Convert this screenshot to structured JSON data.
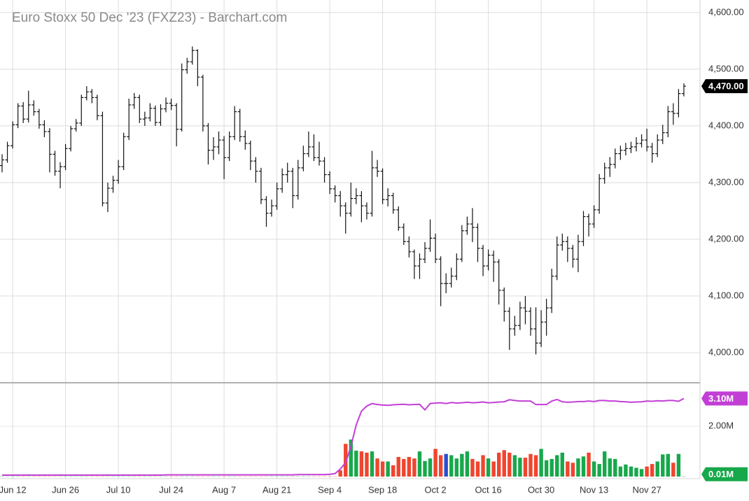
{
  "chart_data": {
    "type": "ohlc",
    "title": "Euro Stoxx 50 Dec '23 (FXZ23) - Barchart.com",
    "categories": [
      null,
      null,
      "Jun 12",
      null,
      null,
      null,
      null,
      null,
      null,
      null,
      null,
      null,
      "Jun 26",
      null,
      null,
      null,
      null,
      null,
      null,
      null,
      null,
      null,
      "Jul 10",
      null,
      null,
      null,
      null,
      null,
      null,
      null,
      null,
      null,
      "Jul 24",
      null,
      null,
      null,
      null,
      null,
      null,
      null,
      null,
      null,
      "Aug 7",
      null,
      null,
      null,
      null,
      null,
      null,
      null,
      null,
      null,
      "Aug 21",
      null,
      null,
      null,
      null,
      null,
      null,
      null,
      null,
      null,
      "Sep 4",
      null,
      null,
      null,
      null,
      null,
      null,
      null,
      null,
      null,
      "Sep 18",
      null,
      null,
      null,
      null,
      null,
      null,
      null,
      null,
      null,
      "Oct 2",
      null,
      null,
      null,
      null,
      null,
      null,
      null,
      null,
      null,
      "Oct 16",
      null,
      null,
      null,
      null,
      null,
      null,
      null,
      null,
      null,
      "Oct 30",
      null,
      null,
      null,
      null,
      null,
      null,
      null,
      null,
      null,
      "Nov 13",
      null,
      null,
      null,
      null,
      null,
      null,
      null,
      null,
      null,
      "Nov 27",
      null,
      null,
      null,
      null,
      null,
      null,
      null
    ],
    "open": [
      4330,
      4340,
      4365,
      4402,
      4435,
      4412,
      4437,
      4425,
      4402,
      4390,
      4350,
      4320,
      4328,
      4360,
      4395,
      4405,
      4450,
      4460,
      4450,
      4418,
      4264,
      4290,
      4304,
      4328,
      4381,
      4437,
      4450,
      4412,
      4414,
      4431,
      4406,
      4430,
      4440,
      4436,
      4394,
      4499,
      4513,
      4533,
      4486,
      4400,
      4357,
      4363,
      4375,
      4344,
      4381,
      4425,
      4381,
      4369,
      4338,
      4320,
      4270,
      4246,
      4259,
      4289,
      4314,
      4320,
      4277,
      4326,
      4351,
      4363,
      4344,
      4338,
      4314,
      4289,
      4277,
      4259,
      4246,
      4272,
      4277,
      4259,
      4246,
      4326,
      4320,
      4270,
      4277,
      4252,
      4221,
      4196,
      4178,
      4153,
      4165,
      4184,
      4202,
      4165,
      4122,
      4122,
      4135,
      4165,
      4215,
      4227,
      4221,
      4184,
      4153,
      4172,
      4160,
      4110,
      4073,
      4042,
      4048,
      4079,
      4073,
      4042,
      4017,
      4054,
      4079,
      4135,
      4190,
      4196,
      4184,
      4165,
      4196,
      4240,
      4227,
      4252,
      4307,
      4326,
      4332,
      4351,
      4357,
      4360,
      4363,
      4369,
      4375,
      4363,
      4351,
      4375,
      4388,
      4425,
      4422,
      4457
    ],
    "high": [
      4350,
      4372,
      4408,
      4440,
      4442,
      4462,
      4445,
      4430,
      4410,
      4396,
      4356,
      4336,
      4368,
      4400,
      4412,
      4455,
      4470,
      4465,
      4455,
      4425,
      4300,
      4312,
      4340,
      4388,
      4448,
      4458,
      4455,
      4425,
      4440,
      4436,
      4438,
      4450,
      4448,
      4440,
      4510,
      4520,
      4540,
      4535,
      4490,
      4405,
      4380,
      4390,
      4382,
      4390,
      4435,
      4430,
      4392,
      4374,
      4345,
      4326,
      4276,
      4270,
      4300,
      4325,
      4335,
      4326,
      4340,
      4365,
      4390,
      4385,
      4372,
      4345,
      4320,
      4295,
      4285,
      4265,
      4300,
      4290,
      4285,
      4265,
      4356,
      4340,
      4325,
      4290,
      4282,
      4258,
      4228,
      4205,
      4182,
      4175,
      4195,
      4235,
      4210,
      4170,
      4140,
      4150,
      4175,
      4225,
      4240,
      4255,
      4228,
      4190,
      4182,
      4180,
      4165,
      4115,
      4080,
      4065,
      4090,
      4100,
      4080,
      4080,
      4075,
      4095,
      4148,
      4205,
      4210,
      4205,
      4190,
      4208,
      4250,
      4245,
      4260,
      4315,
      4335,
      4345,
      4360,
      4365,
      4370,
      4372,
      4380,
      4385,
      4395,
      4370,
      4385,
      4402,
      4435,
      4440,
      4465,
      4475
    ],
    "low": [
      4318,
      4335,
      4360,
      4396,
      4405,
      4406,
      4418,
      4395,
      4380,
      4318,
      4312,
      4290,
      4322,
      4355,
      4390,
      4400,
      4445,
      4440,
      4410,
      4258,
      4248,
      4282,
      4298,
      4322,
      4375,
      4430,
      4405,
      4400,
      4408,
      4400,
      4400,
      4424,
      4428,
      4364,
      4390,
      4492,
      4508,
      4470,
      4390,
      4332,
      4340,
      4350,
      4306,
      4338,
      4375,
      4372,
      4358,
      4322,
      4300,
      4262,
      4222,
      4240,
      4252,
      4282,
      4300,
      4255,
      4270,
      4320,
      4345,
      4338,
      4330,
      4300,
      4280,
      4265,
      4240,
      4210,
      4240,
      4262,
      4230,
      4235,
      4240,
      4310,
      4262,
      4258,
      4245,
      4215,
      4190,
      4168,
      4130,
      4130,
      4158,
      4178,
      4158,
      4082,
      4105,
      4115,
      4128,
      4160,
      4208,
      4195,
      4160,
      4135,
      4145,
      4125,
      4085,
      4055,
      4005,
      4030,
      4040,
      4050,
      4030,
      3997,
      4010,
      4030,
      4070,
      4128,
      4180,
      4160,
      4150,
      4142,
      4188,
      4205,
      4220,
      4245,
      4298,
      4310,
      4325,
      4340,
      4348,
      4352,
      4355,
      4362,
      4355,
      4335,
      4345,
      4368,
      4380,
      4402,
      4415,
      4452
    ],
    "close": [
      4340,
      4365,
      4402,
      4435,
      4412,
      4437,
      4425,
      4402,
      4390,
      4350,
      4320,
      4328,
      4360,
      4395,
      4405,
      4450,
      4460,
      4450,
      4418,
      4264,
      4290,
      4304,
      4328,
      4381,
      4437,
      4450,
      4412,
      4414,
      4431,
      4406,
      4430,
      4440,
      4436,
      4394,
      4499,
      4513,
      4533,
      4486,
      4400,
      4357,
      4363,
      4375,
      4344,
      4381,
      4425,
      4381,
      4369,
      4338,
      4320,
      4270,
      4246,
      4259,
      4289,
      4314,
      4320,
      4277,
      4326,
      4351,
      4363,
      4344,
      4338,
      4314,
      4289,
      4277,
      4259,
      4246,
      4272,
      4277,
      4259,
      4246,
      4326,
      4320,
      4270,
      4277,
      4252,
      4221,
      4196,
      4178,
      4153,
      4165,
      4184,
      4202,
      4165,
      4122,
      4122,
      4135,
      4165,
      4215,
      4227,
      4221,
      4184,
      4153,
      4172,
      4160,
      4110,
      4073,
      4042,
      4048,
      4079,
      4073,
      4042,
      4017,
      4054,
      4079,
      4135,
      4190,
      4196,
      4184,
      4165,
      4196,
      4240,
      4227,
      4252,
      4307,
      4326,
      4332,
      4351,
      4357,
      4360,
      4363,
      4369,
      4375,
      4363,
      4351,
      4375,
      4388,
      4425,
      4422,
      4457,
      4470
    ],
    "color": "#111111",
    "last_price": {
      "value": 4470,
      "label": "4,470.00"
    },
    "last_price_color": "#000000",
    "ylim": [
      3947,
      4622
    ],
    "yticks": [
      {
        "value": 4000,
        "label": "4,000.00"
      },
      {
        "value": 4100,
        "label": "4,100.00"
      },
      {
        "value": 4200,
        "label": "4,200.00"
      },
      {
        "value": 4300,
        "label": "4,300.00"
      },
      {
        "value": 4400,
        "label": "4,400.00"
      },
      {
        "value": 4500,
        "label": "4,500.00"
      },
      {
        "value": 4600,
        "label": "4,600.00"
      }
    ],
    "grid": true,
    "volume": {
      "ylim": [
        -0.08,
        3.67
      ],
      "yticks": [
        {
          "value": 2,
          "label": "2.00M"
        }
      ],
      "series": [
        {
          "type": "bar",
          "up_color": "#17a84b",
          "down_color": "#f0452f",
          "flat_color": "#2b4fd0",
          "last_value_label": "0.01M",
          "last_color": "#17a84b",
          "values": [
            0.01,
            0.01,
            0.01,
            0.01,
            0.01,
            0.01,
            0.01,
            0.01,
            0.01,
            0.01,
            0.01,
            0.01,
            0.01,
            0.01,
            0.01,
            0.01,
            0.01,
            0.01,
            0.01,
            0.01,
            0.01,
            0.01,
            0.01,
            0.01,
            0.01,
            0.01,
            0.01,
            0.01,
            0.01,
            0.01,
            0.01,
            0.01,
            0.01,
            0.01,
            0.01,
            0.01,
            0.01,
            0.01,
            0.01,
            0.01,
            0.01,
            0.01,
            0.01,
            0.01,
            0.01,
            0.01,
            0.01,
            0.01,
            0.01,
            0.01,
            0.01,
            0.01,
            0.01,
            0.01,
            0.01,
            0.01,
            0.01,
            0.01,
            0.01,
            0.01,
            0.01,
            0.01,
            0.01,
            0.01,
            0.25,
            1.3,
            1.47,
            1.03,
            1.0,
            0.95,
            1.0,
            0.72,
            0.6,
            0.6,
            0.45,
            0.78,
            0.7,
            0.78,
            0.72,
            1.0,
            0.62,
            0.72,
            1.1,
            0.85,
            0.9,
            0.85,
            0.72,
            0.9,
            1.0,
            0.7,
            0.6,
            0.85,
            0.72,
            0.6,
            0.95,
            1.05,
            0.95,
            0.85,
            0.75,
            0.75,
            0.9,
            0.85,
            1.1,
            0.65,
            0.7,
            0.85,
            0.95,
            0.6,
            0.55,
            0.72,
            0.8,
            0.95,
            0.6,
            0.5,
            1.0,
            0.72,
            0.7,
            0.4,
            0.48,
            0.4,
            0.35,
            0.3,
            0.4,
            0.5,
            0.6,
            0.88,
            0.9,
            0.55,
            0.9,
            0.01
          ]
        },
        {
          "type": "line",
          "color": "#c23fd6",
          "last_value_label": "3.10M",
          "values": [
            0.06,
            0.06,
            0.06,
            0.06,
            0.06,
            0.06,
            0.06,
            0.06,
            0.06,
            0.06,
            0.06,
            0.06,
            0.06,
            0.06,
            0.06,
            0.06,
            0.06,
            0.06,
            0.06,
            0.06,
            0.06,
            0.06,
            0.06,
            0.06,
            0.06,
            0.06,
            0.06,
            0.06,
            0.06,
            0.06,
            0.06,
            0.07,
            0.07,
            0.07,
            0.07,
            0.07,
            0.07,
            0.07,
            0.07,
            0.07,
            0.07,
            0.07,
            0.07,
            0.07,
            0.07,
            0.07,
            0.07,
            0.07,
            0.07,
            0.07,
            0.07,
            0.07,
            0.07,
            0.07,
            0.07,
            0.07,
            0.08,
            0.08,
            0.08,
            0.08,
            0.08,
            0.08,
            0.09,
            0.12,
            0.3,
            0.55,
            1.2,
            2.05,
            2.6,
            2.8,
            2.9,
            2.86,
            2.84,
            2.83,
            2.85,
            2.86,
            2.87,
            2.85,
            2.86,
            2.87,
            2.65,
            2.9,
            2.92,
            2.93,
            2.9,
            2.94,
            2.92,
            2.93,
            2.95,
            2.93,
            2.94,
            2.96,
            2.93,
            2.94,
            2.96,
            2.97,
            3.05,
            3.02,
            3.0,
            3.0,
            3.0,
            2.86,
            2.86,
            2.86,
            3.0,
            3.06,
            2.97,
            2.95,
            2.96,
            2.98,
            2.98,
            3.0,
            2.98,
            3.02,
            3.02,
            3.0,
            3.0,
            2.98,
            2.97,
            2.95,
            2.96,
            2.97,
            3.0,
            2.99,
            3.01,
            3.0,
            3.02,
            3.02,
            2.99,
            3.1
          ]
        }
      ]
    }
  }
}
